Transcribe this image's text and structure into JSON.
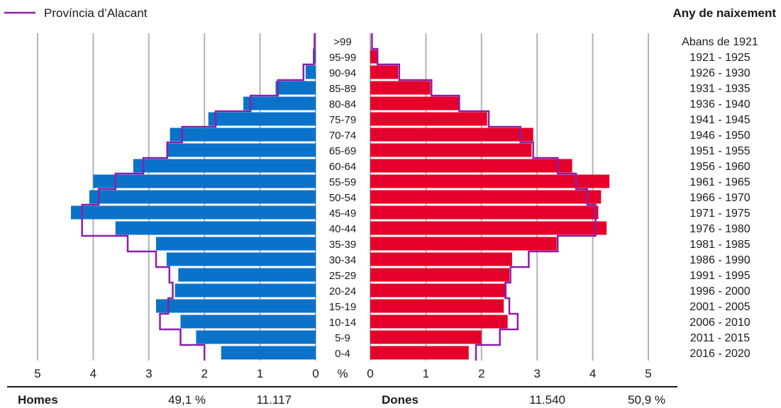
{
  "legend": {
    "label": "Província d’Alacant",
    "color": "#8b1fa9"
  },
  "right_header": "Any de naixement",
  "percent_symbol": "%",
  "footer": {
    "men_label": "Homes",
    "men_percent": "49,1 %",
    "men_count": "11.117",
    "women_label": "Dones",
    "women_count": "11.540",
    "women_percent": "50,9 %"
  },
  "colors": {
    "men": "#0a72c9",
    "women": "#e5002b",
    "outline": "#8b1fa9",
    "grid": "#b3b3b3"
  },
  "chart_data": {
    "type": "bar",
    "orientation": "horizontal-population-pyramid",
    "x_unit": "%",
    "xlim": [
      0,
      5
    ],
    "x_ticks_left": [
      "5",
      "4",
      "3",
      "2",
      "1",
      "0"
    ],
    "x_ticks_right": [
      "0",
      "1",
      "2",
      "3",
      "4",
      "5"
    ],
    "grid": true,
    "categories": [
      ">99",
      "95-99",
      "90-94",
      "85-89",
      "80-84",
      "75-79",
      "70-74",
      "65-69",
      "60-64",
      "55-59",
      "50-54",
      "45-49",
      "40-44",
      "35-39",
      "30-34",
      "25-29",
      "20-24",
      "15-19",
      "10-14",
      "5-9",
      "0-4"
    ],
    "birth_years": [
      "Abans de 1921",
      "1921 - 1925",
      "1926 - 1930",
      "1931 - 1935",
      "1936 - 1940",
      "1941 - 1945",
      "1946 - 1950",
      "1951 - 1955",
      "1956 - 1960",
      "1961 - 1965",
      "1966 - 1970",
      "1971 - 1975",
      "1976 - 1980",
      "1981 - 1985",
      "1986 - 1990",
      "1991 - 1995",
      "1996 - 2000",
      "2001 - 2005",
      "2006 - 2010",
      "2011 - 2015",
      "2016 - 2020"
    ],
    "series": [
      {
        "name": "Homes",
        "side": "left",
        "values": [
          0.0,
          0.05,
          0.18,
          0.72,
          1.3,
          1.93,
          2.62,
          2.67,
          3.28,
          4.0,
          4.07,
          4.4,
          3.6,
          2.87,
          2.68,
          2.47,
          2.53,
          2.87,
          2.43,
          2.15,
          1.7
        ]
      },
      {
        "name": "Homes — Província d’Alacant",
        "side": "left",
        "outline": true,
        "values": [
          0.02,
          0.03,
          0.22,
          0.68,
          1.17,
          1.8,
          2.4,
          2.67,
          3.1,
          3.6,
          3.9,
          4.2,
          4.2,
          3.38,
          2.87,
          2.63,
          2.57,
          2.65,
          2.8,
          2.43,
          2.0
        ]
      },
      {
        "name": "Dones",
        "side": "right",
        "values": [
          0.0,
          0.12,
          0.5,
          1.08,
          1.6,
          2.1,
          2.93,
          2.9,
          3.63,
          4.3,
          4.15,
          4.1,
          4.25,
          3.35,
          2.55,
          2.5,
          2.45,
          2.4,
          2.47,
          2.0,
          1.77
        ]
      },
      {
        "name": "Dones — Província d’Alacant",
        "side": "right",
        "outline": true,
        "values": [
          0.03,
          0.13,
          0.52,
          1.1,
          1.6,
          2.13,
          2.7,
          2.93,
          3.37,
          3.7,
          3.9,
          4.05,
          4.05,
          3.37,
          2.85,
          2.52,
          2.43,
          2.5,
          2.65,
          2.33,
          1.9
        ]
      }
    ]
  }
}
